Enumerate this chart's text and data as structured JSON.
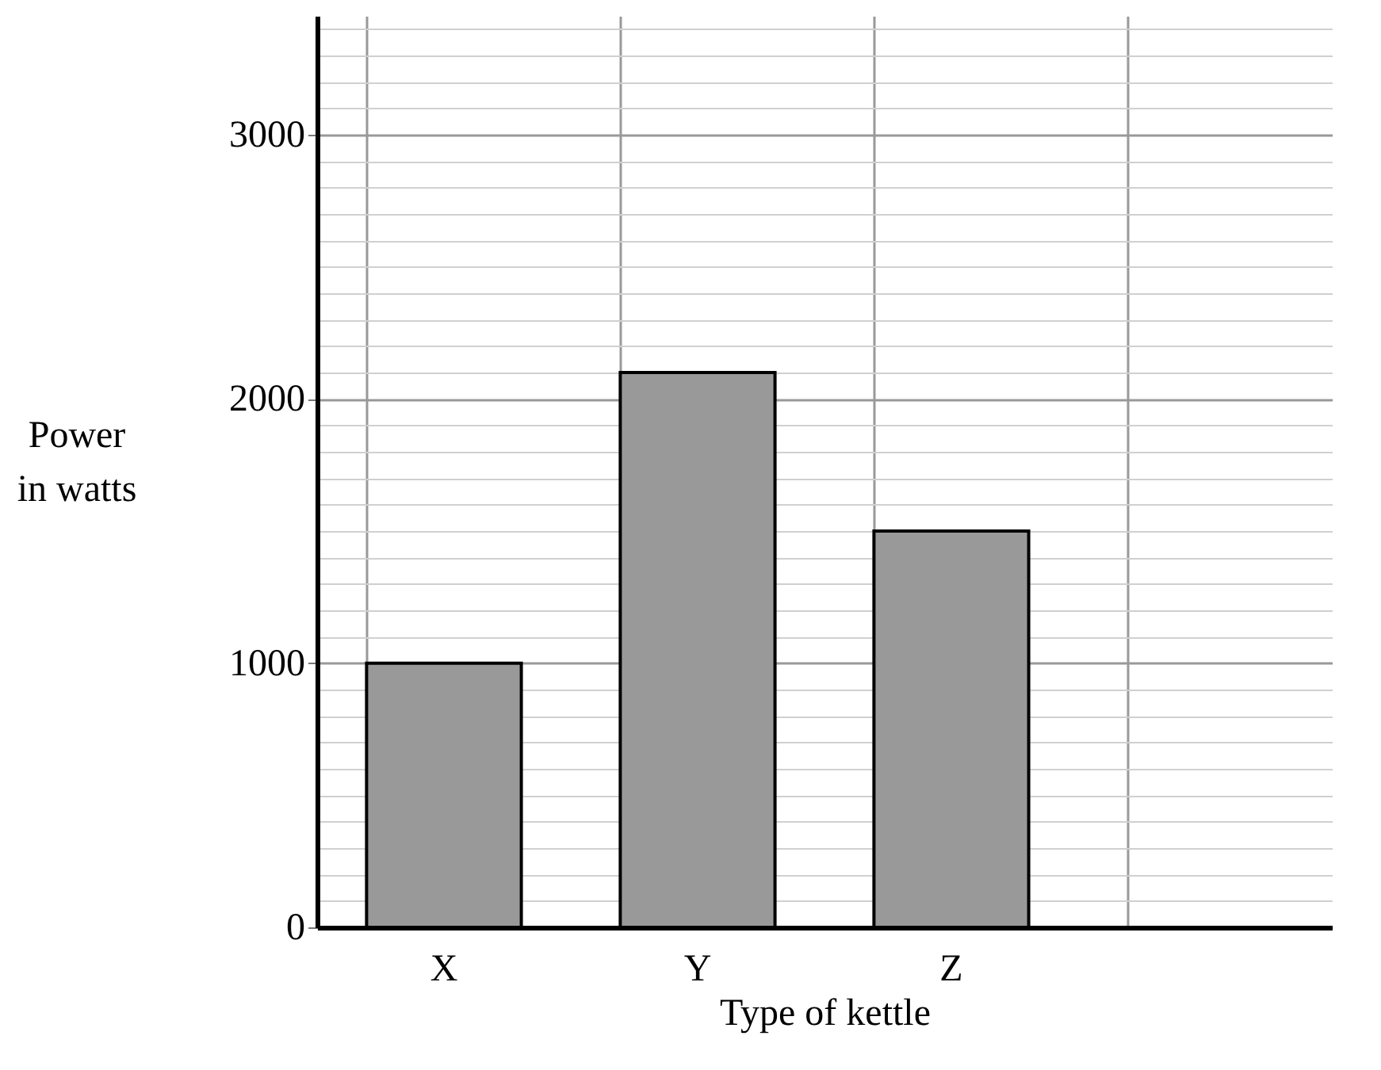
{
  "chart_data": {
    "type": "bar",
    "xlabel": "Type of kettle",
    "ylabel": "Power in watts",
    "categories": [
      "X",
      "Y",
      "Z",
      null
    ],
    "values": [
      1000,
      2100,
      1500,
      null
    ],
    "color": "#999999",
    "ylim": [
      0,
      3450
    ],
    "yticks": [
      0,
      {
        "value": 100,
        "label": null
      },
      {
        "value": 200,
        "label": null
      },
      {
        "value": 300,
        "label": null
      },
      {
        "value": 400,
        "label": null
      },
      {
        "value": 500,
        "label": null
      },
      {
        "value": 600,
        "label": null
      },
      {
        "value": 700,
        "label": null
      },
      {
        "value": 800,
        "label": null
      },
      {
        "value": 900,
        "label": null
      },
      1000,
      {
        "value": 1100,
        "label": null
      },
      {
        "value": 1200,
        "label": null
      },
      {
        "value": 1300,
        "label": null
      },
      {
        "value": 1400,
        "label": null
      },
      {
        "value": 1500,
        "label": null
      },
      {
        "value": 1600,
        "label": null
      },
      {
        "value": 1700,
        "label": null
      },
      {
        "value": 1800,
        "label": null
      },
      {
        "value": 1900,
        "label": null
      },
      2000,
      {
        "value": 2100,
        "label": null
      },
      {
        "value": 2200,
        "label": null
      },
      {
        "value": 2300,
        "label": null
      },
      {
        "value": 2400,
        "label": null
      },
      {
        "value": 2500,
        "label": null
      },
      {
        "value": 2600,
        "label": null
      },
      {
        "value": 2700,
        "label": null
      },
      {
        "value": 2800,
        "label": null
      },
      {
        "value": 2900,
        "label": null
      },
      3000,
      {
        "value": 3100,
        "label": null
      },
      {
        "value": 3200,
        "label": null
      },
      {
        "value": 3300,
        "label": null
      },
      {
        "value": 3400,
        "label": null
      }
    ],
    "grid": true
  }
}
